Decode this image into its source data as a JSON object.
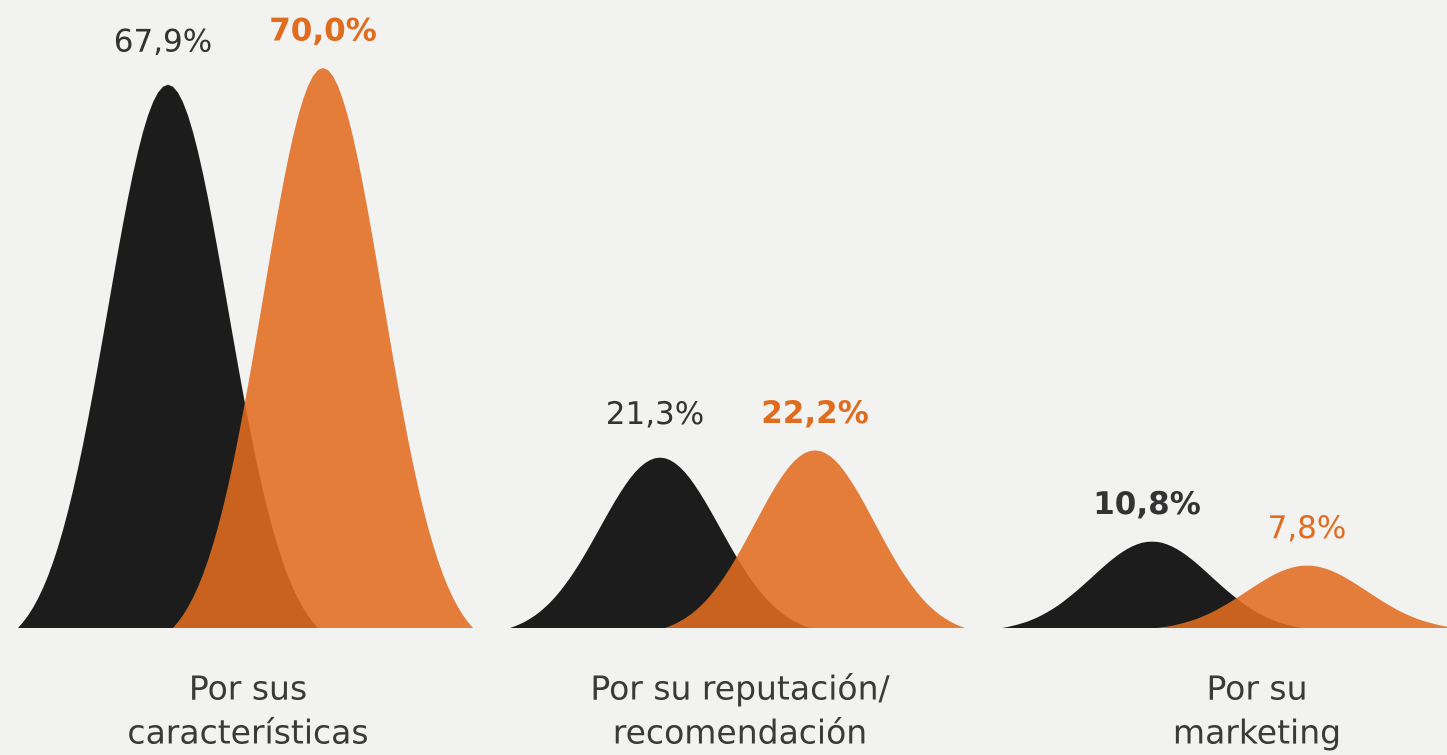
{
  "chart_data": {
    "type": "peak",
    "categories": [
      [
        "Por sus",
        "características"
      ],
      [
        "Por su reputación/",
        "recomendación"
      ],
      [
        "Por su",
        "marketing"
      ]
    ],
    "series": [
      {
        "color": "#1c1c1c",
        "values": [
          67.9,
          21.3,
          10.8
        ],
        "value_labels": [
          "67,9%",
          "21,3%",
          "10,8%"
        ]
      },
      {
        "color": "#e06c1f",
        "values": [
          70.0,
          22.2,
          7.8
        ],
        "value_labels": [
          "70,0%",
          "22,2%",
          "7,8%"
        ]
      }
    ],
    "ylim": [
      0,
      78.5
    ]
  }
}
